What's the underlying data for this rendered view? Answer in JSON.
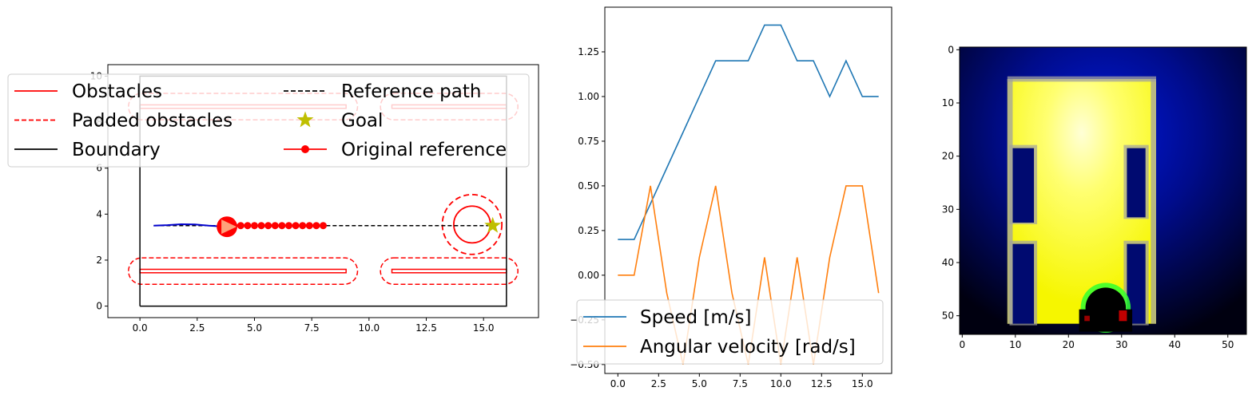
{
  "chart_data": [
    {
      "type": "line",
      "title": "",
      "xlabel": "",
      "ylabel": "",
      "xlim": [
        -1.4,
        17.4
      ],
      "ylim": [
        -0.5,
        10.5
      ],
      "xticks": [
        0.0,
        2.5,
        5.0,
        7.5,
        10.0,
        12.5,
        15.0
      ],
      "xtick_labels": [
        "0.0",
        "2.5",
        "5.0",
        "7.5",
        "10.0",
        "12.5",
        "15.0"
      ],
      "yticks": [
        0,
        2,
        4,
        6,
        8,
        10
      ],
      "ytick_labels": [
        "0",
        "2",
        "4",
        "6",
        "8",
        "10"
      ],
      "legend_position": "top, overflowing left",
      "legend": [
        {
          "label": "Obstacles",
          "style": "solid",
          "color": "#ff0000",
          "marker": ""
        },
        {
          "label": "Padded obstacles",
          "style": "dashed",
          "color": "#ff0000",
          "marker": ""
        },
        {
          "label": "Boundary",
          "style": "solid",
          "color": "#000000",
          "marker": ""
        },
        {
          "label": "Reference path",
          "style": "dashed",
          "color": "#000000",
          "marker": ""
        },
        {
          "label": "Goal",
          "style": "none",
          "color": "#bfbf00",
          "marker": "star"
        },
        {
          "label": "Original reference",
          "style": "solid",
          "color": "#ff0000",
          "marker": "circle"
        }
      ],
      "boundary": [
        [
          0,
          0
        ],
        [
          16,
          0
        ],
        [
          16,
          10
        ],
        [
          0,
          10
        ],
        [
          0,
          0
        ]
      ],
      "obstacles": [
        {
          "x0": 0,
          "x1": 9,
          "y0": 1.45,
          "y1": 1.6
        },
        {
          "x0": 11,
          "x1": 16,
          "y0": 1.45,
          "y1": 1.6
        },
        {
          "x0": 0,
          "x1": 9,
          "y0": 8.6,
          "y1": 8.75
        },
        {
          "x0": 11,
          "x1": 16,
          "y0": 8.6,
          "y1": 8.75
        }
      ],
      "obstacle_padding": 0.5,
      "circular_obstacle": {
        "cx": 14.5,
        "cy": 3.55,
        "r": 0.8,
        "padded_r": 1.3
      },
      "reference_path": {
        "x": [
          0.6,
          15.4
        ],
        "y": [
          3.5,
          3.5
        ]
      },
      "goal": {
        "x": 15.4,
        "y": 3.5
      },
      "original_reference": {
        "x": [
          3.8,
          4.1,
          4.4,
          4.7,
          5.0,
          5.3,
          5.6,
          5.9,
          6.2,
          6.5,
          6.8,
          7.1,
          7.4,
          7.7,
          8.0
        ],
        "y": [
          3.5,
          3.5,
          3.5,
          3.5,
          3.5,
          3.5,
          3.5,
          3.5,
          3.5,
          3.5,
          3.5,
          3.5,
          3.5,
          3.5,
          3.5
        ]
      },
      "trajectory": {
        "x": [
          0.6,
          1.2,
          1.8,
          2.4,
          3.0,
          3.5,
          3.8
        ],
        "y": [
          3.5,
          3.52,
          3.56,
          3.55,
          3.5,
          3.47,
          3.46
        ],
        "color": "#0000cc"
      },
      "robot": {
        "x": 3.8,
        "y": 3.45,
        "radius": 0.45,
        "color": "#ff0000",
        "heading_color": "#ffa07a"
      }
    },
    {
      "type": "line",
      "title": "",
      "xlabel": "",
      "ylabel": "",
      "xlim": [
        -0.8,
        16.8
      ],
      "ylim": [
        -0.55,
        1.5
      ],
      "xticks": [
        0.0,
        2.5,
        5.0,
        7.5,
        10.0,
        12.5,
        15.0
      ],
      "xtick_labels": [
        "0.0",
        "2.5",
        "5.0",
        "7.5",
        "10.0",
        "12.5",
        "15.0"
      ],
      "yticks": [
        -0.5,
        -0.25,
        0.0,
        0.25,
        0.5,
        0.75,
        1.0,
        1.25
      ],
      "ytick_labels": [
        "−0.50",
        "−0.25",
        "0.00",
        "0.25",
        "0.50",
        "0.75",
        "1.00",
        "1.25"
      ],
      "x": [
        0,
        1,
        2,
        3,
        4,
        5,
        6,
        7,
        8,
        9,
        10,
        11,
        12,
        13,
        14,
        15,
        16
      ],
      "legend_position": "lower right",
      "series": [
        {
          "name": "Speed [m/s]",
          "color": "#1f77b4",
          "values": [
            0.2,
            0.2,
            0.4,
            0.6,
            0.8,
            1.0,
            1.2,
            1.2,
            1.2,
            1.4,
            1.4,
            1.2,
            1.2,
            1.0,
            1.2,
            1.0,
            1.0
          ]
        },
        {
          "name": "Angular velocity [rad/s]",
          "color": "#ff7f0e",
          "values": [
            0.0,
            0.0,
            0.5,
            -0.1,
            -0.5,
            0.1,
            0.5,
            -0.1,
            -0.5,
            0.1,
            -0.5,
            0.1,
            -0.5,
            0.1,
            0.5,
            0.5,
            -0.1
          ]
        }
      ]
    },
    {
      "type": "heatmap",
      "title": "",
      "xlabel": "",
      "ylabel": "",
      "xlim": [
        -0.5,
        53.5
      ],
      "ylim": [
        53.5,
        -0.5
      ],
      "xticks": [
        0,
        10,
        20,
        30,
        40,
        50
      ],
      "xtick_labels": [
        "0",
        "10",
        "20",
        "30",
        "40",
        "50"
      ],
      "yticks": [
        0,
        10,
        20,
        30,
        40,
        50
      ],
      "ytick_labels": [
        "0",
        "10",
        "20",
        "30",
        "40",
        "50"
      ],
      "grid_size": [
        54,
        54
      ],
      "colors": {
        "background": "#000000",
        "glow": "#0010c8",
        "free_space": "#ffff00",
        "hot_spot": "#ffffc8",
        "wall": "#a0a0a0",
        "robot": "#30ff30",
        "robot_dark": "#c00000"
      },
      "glow_center": [
        27,
        16
      ],
      "free_region": {
        "c0": 9,
        "c1": 37,
        "r0": 6,
        "r1": 52
      },
      "walls": [
        {
          "c0": 9,
          "c1": 37,
          "r0": 5.5,
          "r1": 6.5
        },
        {
          "c0": 9,
          "c1": 10,
          "r0": 6,
          "r1": 52
        },
        {
          "c0": 36,
          "c1": 37,
          "r0": 6,
          "r1": 52
        }
      ],
      "dark_blocks": [
        {
          "c0": 10,
          "c1": 14,
          "r0": 19,
          "r1": 33
        },
        {
          "c0": 31.5,
          "c1": 35,
          "r0": 19,
          "r1": 32
        },
        {
          "c0": 10,
          "c1": 14,
          "r0": 37,
          "r1": 52
        },
        {
          "c0": 31.5,
          "c1": 35,
          "r0": 37,
          "r1": 52
        }
      ],
      "robot_dome": {
        "cx": 27.5,
        "cy": 49,
        "r": 3.8
      }
    }
  ]
}
